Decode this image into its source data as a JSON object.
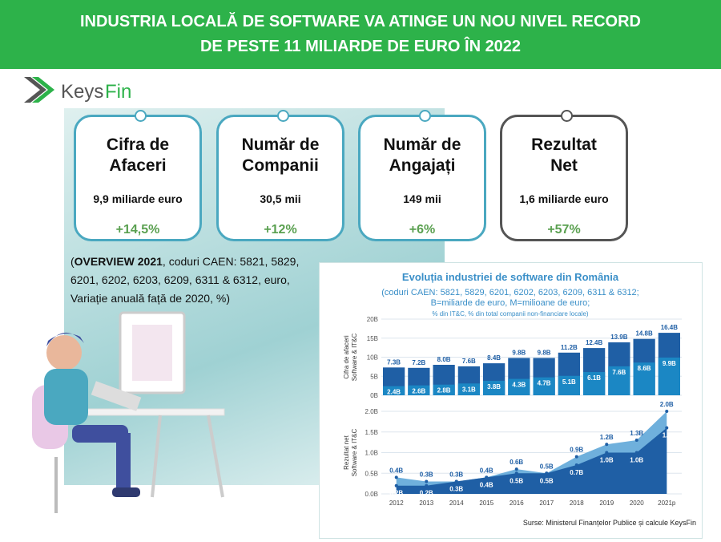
{
  "header": {
    "title": [
      "INDUSTRIA LOCALĂ DE SOFTWARE VA ATINGE UN NOU NIVEL RECORD",
      "DE PESTE 11 MILIARDE DE EURO ÎN 2022"
    ]
  },
  "logo": {
    "text_a": "Keys",
    "text_b": "Fin"
  },
  "cards": [
    {
      "title": [
        "Cifra de",
        "Afaceri"
      ],
      "value": "9,9 miliarde euro",
      "change": "+14,5%"
    },
    {
      "title": [
        "Număr de",
        "Companii"
      ],
      "value": "30,5 mii",
      "change": "+12%"
    },
    {
      "title": [
        "Număr de",
        "Angajați"
      ],
      "value": "149 mii",
      "change": "+6%"
    },
    {
      "title": [
        "Rezultat",
        "Net"
      ],
      "value": "1,6 miliarde euro",
      "change": "+57%"
    }
  ],
  "note": {
    "open": "(",
    "bold": "OVERVIEW 2021",
    "text": ", coduri CAEN: 5821, 5829, 6201, 6202, 6203, 6209, 6311 & 6312, euro, Variație anuală față de 2020, %)"
  },
  "chart_data": [
    {
      "type": "bar",
      "title": "Evoluția industriei de software din România",
      "subtitle": [
        "(coduri CAEN: 5821, 5829, 6201, 6202, 6203, 6209, 6311 & 6312;",
        "B=miliarde de euro, M=milioane de euro;",
        "% din IT&C, % din total companii non-financiare locale)"
      ],
      "y_label": [
        "Cifra de afaceri",
        "Software & IT&C"
      ],
      "categories": [
        null,
        null,
        null,
        null,
        null,
        null,
        null,
        null,
        null,
        null,
        null,
        null
      ],
      "series": [
        {
          "name": "IT&C",
          "color": "#1f5fa5",
          "values": [
            7.3,
            7.2,
            8.0,
            7.6,
            8.4,
            9.8,
            9.8,
            11.2,
            12.4,
            13.9,
            14.8,
            16.4
          ],
          "value_labels": [
            "7.3B",
            "7.2B",
            "8.0B",
            "7.6B",
            "8.4B",
            "9.8B",
            "9.8B",
            "11.2B",
            "12.4B",
            "13.9B",
            "14.8B",
            "16.4B"
          ]
        },
        {
          "name": "Software",
          "color": "#1b87c4",
          "values": [
            2.4,
            2.6,
            2.8,
            3.1,
            3.8,
            4.3,
            4.7,
            5.1,
            6.1,
            7.6,
            8.6,
            9.9
          ],
          "value_labels": [
            "2.4B",
            "2.6B",
            "2.8B",
            "3.1B",
            "3.8B",
            "4.3B",
            "4.7B",
            "5.1B",
            "6.1B",
            "7.6B",
            "8.6B",
            "9.9B"
          ]
        }
      ],
      "ylim": [
        0,
        20
      ],
      "yticks": [
        {
          "value": 0,
          "label": "0B"
        },
        {
          "value": 5,
          "label": "5B"
        },
        {
          "value": 10,
          "label": "10B"
        },
        {
          "value": 15,
          "label": "15B"
        },
        {
          "value": 20,
          "label": "20B"
        }
      ]
    },
    {
      "type": "area",
      "y_label": [
        "Rezultat net",
        "Software & IT&C"
      ],
      "categories": [
        "2012",
        "2013",
        "2014",
        "2015",
        "2016",
        "2017",
        "2018",
        "2019",
        "2020",
        "2021p"
      ],
      "series": [
        {
          "name": "IT&C",
          "color": "#6fb0dc",
          "values": [
            0.4,
            0.3,
            0.3,
            0.4,
            0.6,
            0.5,
            0.9,
            1.2,
            1.3,
            2.0
          ],
          "value_labels": [
            "0.4B",
            "0.3B",
            "0.3B",
            "0.4B",
            "0.6B",
            "0.5B",
            "0.9B",
            "1.2B",
            "1.3B",
            "2.0B"
          ]
        },
        {
          "name": "Software",
          "color": "#1f5fa5",
          "values": [
            0.2,
            0.2,
            0.3,
            0.4,
            0.5,
            0.5,
            0.7,
            1.0,
            1.0,
            1.6
          ],
          "value_labels": [
            "0.2B",
            "0.2B",
            "0.3B",
            "0.4B",
            "0.5B",
            "0.5B",
            "0.7B",
            "1.0B",
            "1.0B",
            "1.6"
          ]
        }
      ],
      "ylim": [
        0,
        2
      ],
      "yticks": [
        {
          "value": 0,
          "label": "0.0B"
        },
        {
          "value": 0.5,
          "label": "0.5B"
        },
        {
          "value": 1,
          "label": "1.0B"
        },
        {
          "value": 1.5,
          "label": "1.5B"
        },
        {
          "value": 2,
          "label": "2.0B"
        }
      ],
      "source": "Surse: Ministerul Finanțelor Publice și calcule KeysFin"
    }
  ]
}
